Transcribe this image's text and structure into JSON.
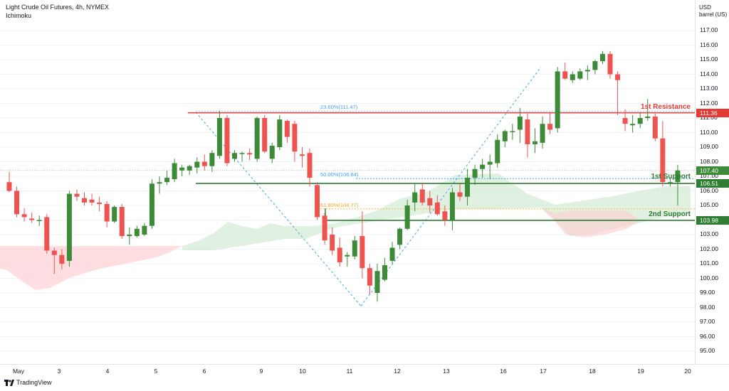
{
  "header": {
    "title": "Light Crude Oil Futures, 4h, NYMEX",
    "indicator": "Ichimoku"
  },
  "units": {
    "currency": "USD",
    "measure": "barrel (US)"
  },
  "footer": {
    "brand": "TradingView"
  },
  "levels": {
    "resistance1": {
      "label": "1st Resistance",
      "value": "111.36",
      "color": "#e53935"
    },
    "support1": {
      "label": "1st Support",
      "value": "106.51",
      "color": "#2e7d32"
    },
    "support2": {
      "label": "2nd Support",
      "value": "103.98",
      "color": "#2e7d32"
    },
    "current_price": "107.40",
    "fib_236": "23.60%(111.47)",
    "fib_50": "50.00%(106.84)",
    "fib_618": "61.80%(104.77)"
  },
  "colors": {
    "up": "#3d8b37",
    "down": "#ef5350",
    "fib_line": "#42a5f5",
    "cloud_green": "#c8e6c9",
    "cloud_red": "#ffcdd2"
  },
  "chart_data": {
    "type": "candlestick",
    "title": "Light Crude Oil Futures, 4h, NYMEX",
    "y_ticks": [
      "95.00",
      "96.00",
      "97.00",
      "98.00",
      "99.00",
      "100.00",
      "101.00",
      "102.00",
      "103.00",
      "104.00",
      "105.00",
      "106.00",
      "107.00",
      "108.00",
      "109.00",
      "110.00",
      "111.00",
      "112.00",
      "113.00",
      "114.00",
      "115.00",
      "116.00",
      "117.00"
    ],
    "y_range": [
      94.0,
      118.0
    ],
    "x_labels": [
      "May",
      "3",
      "4",
      "5",
      "6",
      "9",
      "10",
      "11",
      "12",
      "13",
      "16",
      "17",
      "18",
      "19",
      "20"
    ],
    "candles": [
      {
        "o": 106.6,
        "h": 107.3,
        "l": 105.9,
        "c": 106.0
      },
      {
        "o": 106.0,
        "h": 106.3,
        "l": 104.2,
        "c": 104.4
      },
      {
        "o": 104.4,
        "h": 104.8,
        "l": 103.9,
        "c": 104.2
      },
      {
        "o": 104.1,
        "h": 104.5,
        "l": 103.8,
        "c": 104.0
      },
      {
        "o": 104.0,
        "h": 104.3,
        "l": 103.6,
        "c": 104.0
      },
      {
        "o": 104.2,
        "h": 104.4,
        "l": 101.7,
        "c": 101.9
      },
      {
        "o": 101.9,
        "h": 102.1,
        "l": 100.3,
        "c": 101.6
      },
      {
        "o": 101.6,
        "h": 102.0,
        "l": 100.6,
        "c": 101.0
      },
      {
        "o": 101.2,
        "h": 106.0,
        "l": 100.8,
        "c": 105.8
      },
      {
        "o": 105.8,
        "h": 106.1,
        "l": 105.3,
        "c": 105.6
      },
      {
        "o": 105.5,
        "h": 105.9,
        "l": 105.0,
        "c": 105.2
      },
      {
        "o": 105.4,
        "h": 105.8,
        "l": 105.0,
        "c": 105.2
      },
      {
        "o": 105.2,
        "h": 105.6,
        "l": 104.6,
        "c": 105.1
      },
      {
        "o": 105.1,
        "h": 105.3,
        "l": 103.5,
        "c": 103.9
      },
      {
        "o": 103.9,
        "h": 105.0,
        "l": 103.8,
        "c": 104.9
      },
      {
        "o": 104.9,
        "h": 105.1,
        "l": 102.7,
        "c": 102.9
      },
      {
        "o": 102.9,
        "h": 103.5,
        "l": 102.3,
        "c": 103.0
      },
      {
        "o": 102.9,
        "h": 103.6,
        "l": 102.8,
        "c": 103.4
      },
      {
        "o": 103.0,
        "h": 103.8,
        "l": 102.9,
        "c": 103.6
      },
      {
        "o": 103.6,
        "h": 106.8,
        "l": 103.4,
        "c": 106.5
      },
      {
        "o": 106.5,
        "h": 107.0,
        "l": 105.8,
        "c": 106.6
      },
      {
        "o": 106.6,
        "h": 107.4,
        "l": 106.4,
        "c": 106.9
      },
      {
        "o": 106.8,
        "h": 108.2,
        "l": 106.6,
        "c": 107.9
      },
      {
        "o": 107.4,
        "h": 107.8,
        "l": 107.0,
        "c": 107.6
      },
      {
        "o": 107.4,
        "h": 107.8,
        "l": 107.1,
        "c": 107.7
      },
      {
        "o": 107.6,
        "h": 108.3,
        "l": 107.2,
        "c": 108.0
      },
      {
        "o": 108.0,
        "h": 108.5,
        "l": 107.4,
        "c": 107.7
      },
      {
        "o": 107.7,
        "h": 108.8,
        "l": 107.3,
        "c": 108.6
      },
      {
        "o": 108.4,
        "h": 111.5,
        "l": 108.2,
        "c": 111.0
      },
      {
        "o": 111.0,
        "h": 111.2,
        "l": 107.7,
        "c": 107.9
      },
      {
        "o": 108.2,
        "h": 108.8,
        "l": 108.0,
        "c": 108.6
      },
      {
        "o": 108.6,
        "h": 108.7,
        "l": 108.0,
        "c": 108.6
      },
      {
        "o": 108.6,
        "h": 108.9,
        "l": 108.1,
        "c": 108.5
      },
      {
        "o": 108.2,
        "h": 111.1,
        "l": 108.0,
        "c": 111.0
      },
      {
        "o": 111.0,
        "h": 111.2,
        "l": 108.6,
        "c": 108.7
      },
      {
        "o": 108.2,
        "h": 109.3,
        "l": 107.9,
        "c": 109.1
      },
      {
        "o": 109.0,
        "h": 111.2,
        "l": 108.8,
        "c": 110.9
      },
      {
        "o": 110.8,
        "h": 110.9,
        "l": 109.3,
        "c": 109.7
      },
      {
        "o": 110.6,
        "h": 110.8,
        "l": 108.0,
        "c": 108.7
      },
      {
        "o": 108.5,
        "h": 109.0,
        "l": 107.6,
        "c": 108.4
      },
      {
        "o": 108.6,
        "h": 108.9,
        "l": 106.3,
        "c": 106.9
      },
      {
        "o": 106.4,
        "h": 106.6,
        "l": 104.0,
        "c": 104.2
      },
      {
        "o": 104.3,
        "h": 104.5,
        "l": 102.3,
        "c": 102.6
      },
      {
        "o": 103.0,
        "h": 103.5,
        "l": 101.6,
        "c": 101.9
      },
      {
        "o": 102.1,
        "h": 102.8,
        "l": 100.8,
        "c": 101.1
      },
      {
        "o": 101.5,
        "h": 101.8,
        "l": 100.8,
        "c": 101.6
      },
      {
        "o": 101.5,
        "h": 102.9,
        "l": 101.3,
        "c": 102.6
      },
      {
        "o": 102.9,
        "h": 104.6,
        "l": 100.0,
        "c": 100.7
      },
      {
        "o": 100.7,
        "h": 101.0,
        "l": 98.9,
        "c": 99.5
      },
      {
        "o": 99.0,
        "h": 101.0,
        "l": 98.4,
        "c": 100.5
      },
      {
        "o": 99.9,
        "h": 101.4,
        "l": 99.8,
        "c": 100.9
      },
      {
        "o": 101.2,
        "h": 102.5,
        "l": 101.0,
        "c": 102.1
      },
      {
        "o": 102.3,
        "h": 103.5,
        "l": 102.0,
        "c": 103.4
      },
      {
        "o": 103.4,
        "h": 105.4,
        "l": 103.3,
        "c": 105.0
      },
      {
        "o": 105.2,
        "h": 106.5,
        "l": 104.6,
        "c": 105.9
      },
      {
        "o": 106.1,
        "h": 106.5,
        "l": 105.0,
        "c": 105.2
      },
      {
        "o": 105.5,
        "h": 106.0,
        "l": 104.5,
        "c": 105.0
      },
      {
        "o": 105.2,
        "h": 105.7,
        "l": 104.3,
        "c": 104.4
      },
      {
        "o": 104.6,
        "h": 105.0,
        "l": 103.6,
        "c": 104.0
      },
      {
        "o": 104.0,
        "h": 106.2,
        "l": 103.3,
        "c": 105.9
      },
      {
        "o": 105.9,
        "h": 106.5,
        "l": 105.3,
        "c": 105.6
      },
      {
        "o": 105.6,
        "h": 107.5,
        "l": 105.0,
        "c": 106.9
      },
      {
        "o": 106.9,
        "h": 107.8,
        "l": 106.4,
        "c": 107.5
      },
      {
        "o": 107.5,
        "h": 108.2,
        "l": 106.9,
        "c": 107.8
      },
      {
        "o": 107.8,
        "h": 108.5,
        "l": 106.8,
        "c": 108.0
      },
      {
        "o": 107.9,
        "h": 109.9,
        "l": 107.6,
        "c": 109.5
      },
      {
        "o": 109.4,
        "h": 110.2,
        "l": 109.0,
        "c": 110.1
      },
      {
        "o": 110.1,
        "h": 110.6,
        "l": 109.5,
        "c": 110.1
      },
      {
        "o": 110.2,
        "h": 111.7,
        "l": 109.3,
        "c": 111.1
      },
      {
        "o": 110.9,
        "h": 111.3,
        "l": 108.3,
        "c": 109.2
      },
      {
        "o": 109.2,
        "h": 110.3,
        "l": 108.6,
        "c": 109.4
      },
      {
        "o": 109.3,
        "h": 111.1,
        "l": 108.9,
        "c": 110.6
      },
      {
        "o": 110.6,
        "h": 111.4,
        "l": 109.9,
        "c": 110.2
      },
      {
        "o": 110.3,
        "h": 114.5,
        "l": 110.0,
        "c": 114.2
      },
      {
        "o": 114.2,
        "h": 114.8,
        "l": 113.6,
        "c": 113.7
      },
      {
        "o": 113.6,
        "h": 114.2,
        "l": 113.4,
        "c": 114.0
      },
      {
        "o": 113.7,
        "h": 114.4,
        "l": 113.6,
        "c": 114.2
      },
      {
        "o": 114.2,
        "h": 114.6,
        "l": 113.6,
        "c": 114.3
      },
      {
        "o": 114.3,
        "h": 115.0,
        "l": 114.0,
        "c": 114.9
      },
      {
        "o": 114.9,
        "h": 115.6,
        "l": 114.7,
        "c": 115.4
      },
      {
        "o": 115.4,
        "h": 115.6,
        "l": 113.7,
        "c": 114.0
      },
      {
        "o": 114.0,
        "h": 114.2,
        "l": 111.2,
        "c": 113.6
      },
      {
        "o": 111.0,
        "h": 111.6,
        "l": 110.1,
        "c": 110.6
      },
      {
        "o": 110.5,
        "h": 111.2,
        "l": 110.0,
        "c": 110.6
      },
      {
        "o": 110.6,
        "h": 111.4,
        "l": 110.3,
        "c": 111.0
      },
      {
        "o": 111.0,
        "h": 112.3,
        "l": 110.8,
        "c": 111.1
      },
      {
        "o": 111.1,
        "h": 111.3,
        "l": 109.4,
        "c": 109.6
      },
      {
        "o": 109.6,
        "h": 110.8,
        "l": 106.3,
        "c": 106.6
      },
      {
        "o": 106.5,
        "h": 106.9,
        "l": 106.3,
        "c": 106.6
      },
      {
        "o": 106.6,
        "h": 107.8,
        "l": 105.0,
        "c": 107.4
      }
    ]
  }
}
